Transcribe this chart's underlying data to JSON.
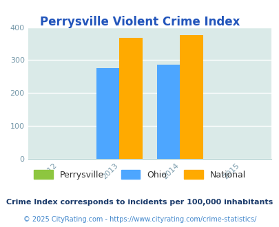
{
  "title": "Perrysville Violent Crime Index",
  "title_color": "#2255bb",
  "years": [
    2012,
    2013,
    2014,
    2015
  ],
  "bar_years": [
    2013,
    2014
  ],
  "perrysville_values": [
    0,
    0
  ],
  "ohio_values": [
    275,
    286
  ],
  "national_values": [
    368,
    376
  ],
  "colors": {
    "perrysville": "#8dc63f",
    "ohio": "#4da6ff",
    "national": "#ffaa00"
  },
  "xlim": [
    2011.5,
    2015.5
  ],
  "ylim": [
    0,
    400
  ],
  "yticks": [
    0,
    100,
    200,
    300,
    400
  ],
  "background_color": "#daeae8",
  "grid_color": "#c0d8d8",
  "bar_width": 0.38,
  "legend_labels": [
    "Perrysville",
    "Ohio",
    "National"
  ],
  "footnote1": "Crime Index corresponds to incidents per 100,000 inhabitants",
  "footnote2": "© 2025 CityRating.com - https://www.cityrating.com/crime-statistics/",
  "footnote1_color": "#1a3a6a",
  "footnote2_color": "#4488cc"
}
